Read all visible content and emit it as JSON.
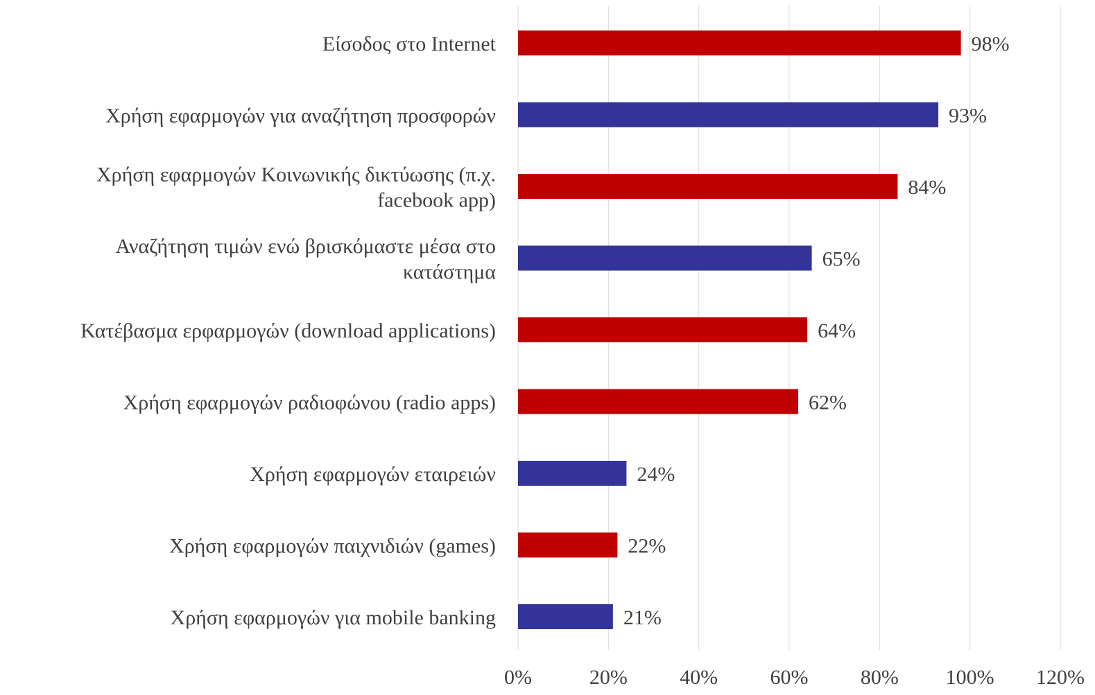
{
  "chart_data": {
    "type": "bar",
    "orientation": "horizontal",
    "title": "",
    "xlabel": "",
    "ylabel": "",
    "xlim": [
      0,
      120
    ],
    "x_ticks": [
      "0%",
      "20%",
      "40%",
      "60%",
      "80%",
      "100%",
      "120%"
    ],
    "grid": "vertical",
    "legend": "none",
    "categories": [
      [
        "Είσοδος στο Internet"
      ],
      [
        "Χρήση εφαρμογών για αναζήτηση προσφορών"
      ],
      [
        "Χρήση εφαρμογών Κοινωνικής δικτύωσης (π.χ.",
        "facebook app)"
      ],
      [
        "Αναζήτηση τιμών ενώ βρισκόμαστε μέσα στο",
        "κατάστημα"
      ],
      [
        "Κατέβασμα ερφαρμογών (download applications)"
      ],
      [
        "Χρήση εφαρμογών ραδιοφώνου (radio apps)"
      ],
      [
        "Χρήση εφαρμογών εταιρειών"
      ],
      [
        "Χρήση εφαρμογών παιχνιδιών (games)"
      ],
      [
        "Χρήση εφαρμογών για mobile banking"
      ]
    ],
    "values": [
      98,
      93,
      84,
      65,
      64,
      62,
      24,
      22,
      21
    ],
    "value_labels": [
      "98%",
      "93%",
      "84%",
      "65%",
      "64%",
      "62%",
      "24%",
      "22%",
      "21%"
    ],
    "bar_colors": [
      "#c00000",
      "#333399",
      "#c00000",
      "#333399",
      "#c00000",
      "#c00000",
      "#333399",
      "#c00000",
      "#333399"
    ]
  },
  "colors": {
    "red": "#c00000",
    "blue": "#333399",
    "grid": "#d9d9d9",
    "text": "#404040"
  }
}
